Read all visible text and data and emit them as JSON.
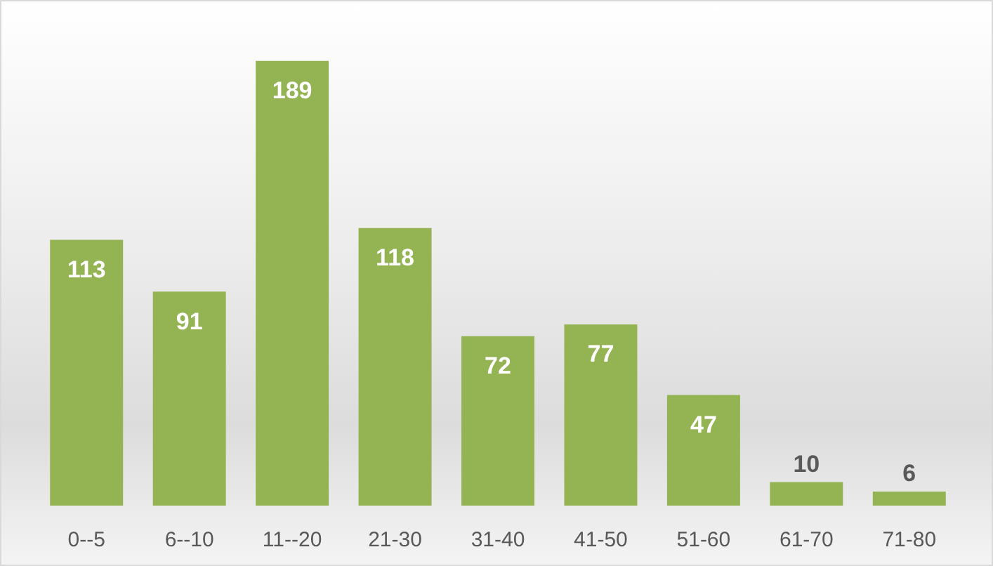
{
  "chart_data": {
    "type": "bar",
    "categories": [
      "0--5",
      "6--10",
      "11--20",
      "21-30",
      "31-40",
      "41-50",
      "51-60",
      "61-70",
      "71-80"
    ],
    "values": [
      113,
      91,
      189,
      118,
      72,
      77,
      47,
      10,
      6
    ],
    "color": "#94b454",
    "data_labels": true
  }
}
